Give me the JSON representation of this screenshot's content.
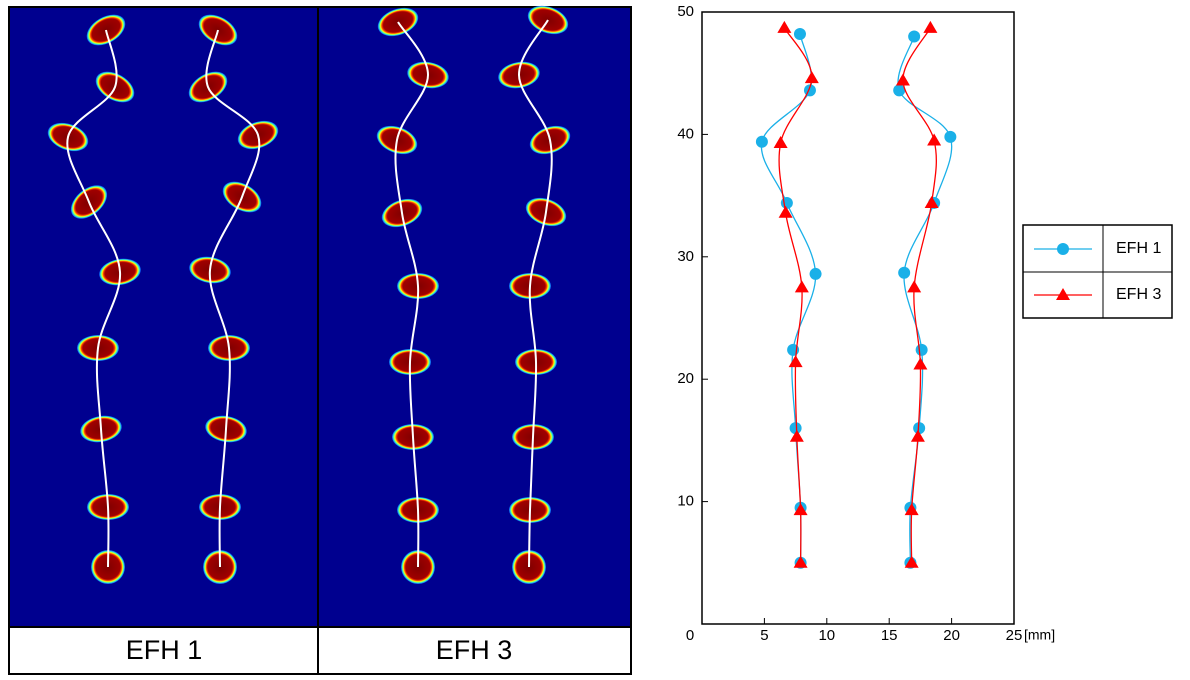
{
  "panels": [
    {
      "label": "EFH 1"
    },
    {
      "label": "EFH 3"
    }
  ],
  "chart_data": {
    "type": "line",
    "x_label": "[mm]",
    "smooth": true,
    "xlim": [
      0,
      25
    ],
    "xticks": [
      0,
      5,
      10,
      15,
      20,
      25
    ],
    "ylim": [
      0,
      50
    ],
    "yticks": [
      10,
      20,
      30,
      40,
      50
    ],
    "legend": "right",
    "series": [
      {
        "name": "EFH 1",
        "color": "#1ab0e8",
        "marker": "circle",
        "x": [
          7.9,
          7.9,
          7.5,
          7.3,
          9.1,
          6.8,
          4.8,
          8.65,
          7.85,
          null,
          16.7,
          16.7,
          17.4,
          17.6,
          16.2,
          18.6,
          19.9,
          15.8,
          17.0
        ],
        "values": [
          5.0,
          9.5,
          16.0,
          22.4,
          28.6,
          34.4,
          39.4,
          43.6,
          48.2,
          null,
          5.0,
          9.5,
          16.0,
          22.4,
          28.7,
          34.4,
          39.8,
          43.6,
          48.0
        ]
      },
      {
        "name": "EFH 3",
        "color": "#ff0000",
        "marker": "triangle",
        "x": [
          7.9,
          7.9,
          7.6,
          7.5,
          8.0,
          6.7,
          6.3,
          8.8,
          6.6,
          null,
          16.8,
          16.8,
          17.3,
          17.5,
          17.0,
          18.4,
          18.6,
          16.1,
          18.3
        ],
        "values": [
          5.0,
          9.3,
          15.3,
          21.4,
          27.5,
          33.6,
          39.3,
          44.6,
          48.7,
          null,
          5.0,
          9.3,
          15.3,
          21.2,
          27.5,
          34.4,
          39.5,
          44.4,
          48.7
        ]
      }
    ]
  }
}
